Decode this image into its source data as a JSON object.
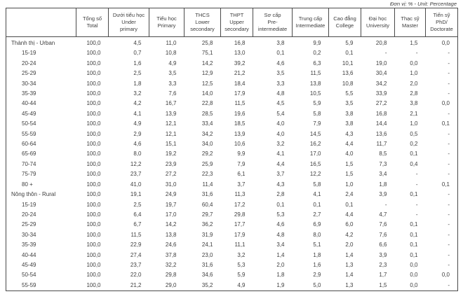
{
  "unit_note": "Đơn vị: % - Unit: Percentage",
  "table": {
    "columns": [
      {
        "id": "total",
        "label": "Tổng số\nTotal"
      },
      {
        "id": "under-primary",
        "label": "Dưới tiểu học\nUnder\nprimary"
      },
      {
        "id": "primary",
        "label": "Tiểu học\nPrimary"
      },
      {
        "id": "lower-secondary",
        "label": "THCS\nLower\nsecondary"
      },
      {
        "id": "upper-secondary",
        "label": "THPT\nUpper\nsecondary"
      },
      {
        "id": "pre-intermediate",
        "label": "Sơ cấp\nPre-\nintermediate"
      },
      {
        "id": "intermediate",
        "label": "Trung cấp\nIntermediate"
      },
      {
        "id": "college",
        "label": "Cao đẳng\nCollege"
      },
      {
        "id": "university",
        "label": "Đại học\nUniversity"
      },
      {
        "id": "master",
        "label": "Thạc sỹ\nMaster"
      },
      {
        "id": "doctorate",
        "label": "Tiến sỹ\nPhD/\nDoctorate"
      }
    ],
    "rows": [
      {
        "label": "Thành thị - Urban",
        "group": true,
        "values": [
          "100,0",
          "4,5",
          "11,0",
          "25,8",
          "16,8",
          "3,8",
          "9,9",
          "5,9",
          "20,8",
          "1,5",
          "0,0"
        ]
      },
      {
        "label": "15-19",
        "group": false,
        "values": [
          "100,0",
          "0,7",
          "10,8",
          "75,1",
          "13,0",
          "0,1",
          "0,2",
          "0,1",
          "-",
          "-",
          "-"
        ]
      },
      {
        "label": "20-24",
        "group": false,
        "values": [
          "100,0",
          "1,6",
          "4,9",
          "14,2",
          "39,2",
          "4,6",
          "6,3",
          "10,1",
          "19,0",
          "0,0",
          "-"
        ]
      },
      {
        "label": "25-29",
        "group": false,
        "values": [
          "100,0",
          "2,5",
          "3,5",
          "12,9",
          "21,2",
          "3,5",
          "11,5",
          "13,6",
          "30,4",
          "1,0",
          "-"
        ]
      },
      {
        "label": "30-34",
        "group": false,
        "values": [
          "100,0",
          "1,8",
          "3,3",
          "12,5",
          "18,4",
          "3,3",
          "13,8",
          "10,8",
          "34,2",
          "2,0",
          "-"
        ]
      },
      {
        "label": "35-39",
        "group": false,
        "values": [
          "100,0",
          "3,2",
          "7,6",
          "14,0",
          "17,9",
          "4,8",
          "10,5",
          "5,5",
          "33,9",
          "2,8",
          "-"
        ]
      },
      {
        "label": "40-44",
        "group": false,
        "values": [
          "100,0",
          "4,2",
          "16,7",
          "22,8",
          "11,5",
          "4,5",
          "5,9",
          "3,5",
          "27,2",
          "3,8",
          "0,0"
        ]
      },
      {
        "label": "45-49",
        "group": false,
        "values": [
          "100,0",
          "4,1",
          "13,9",
          "28,5",
          "19,6",
          "5,4",
          "5,8",
          "3,8",
          "16,8",
          "2,1",
          "-"
        ]
      },
      {
        "label": "50-54",
        "group": false,
        "values": [
          "100,0",
          "4,9",
          "12,1",
          "33,4",
          "18,5",
          "4,0",
          "7,9",
          "3,8",
          "14,4",
          "1,0",
          "0,1"
        ]
      },
      {
        "label": "55-59",
        "group": false,
        "values": [
          "100,0",
          "2,9",
          "12,1",
          "34,2",
          "13,9",
          "4,0",
          "14,5",
          "4,3",
          "13,6",
          "0,5",
          "-"
        ]
      },
      {
        "label": "60-64",
        "group": false,
        "values": [
          "100,0",
          "4,6",
          "15,1",
          "34,0",
          "10,6",
          "3,2",
          "16,2",
          "4,4",
          "11,7",
          "0,2",
          "-"
        ]
      },
      {
        "label": "65-69",
        "group": false,
        "values": [
          "100,0",
          "8,0",
          "19,2",
          "29,2",
          "9,9",
          "4,1",
          "17,0",
          "4,0",
          "8,5",
          "0,1",
          "-"
        ]
      },
      {
        "label": "70-74",
        "group": false,
        "values": [
          "100,0",
          "12,2",
          "23,9",
          "25,9",
          "7,9",
          "4,4",
          "16,5",
          "1,5",
          "7,3",
          "0,4",
          "-"
        ]
      },
      {
        "label": "75-79",
        "group": false,
        "values": [
          "100,0",
          "23,7",
          "27,2",
          "22,3",
          "6,1",
          "3,7",
          "12,2",
          "1,5",
          "3,4",
          "-",
          "-"
        ]
      },
      {
        "label": "80 +",
        "group": false,
        "values": [
          "100,0",
          "41,0",
          "31,0",
          "11,4",
          "3,7",
          "4,3",
          "5,8",
          "1,0",
          "1,8",
          "-",
          "0,1"
        ]
      },
      {
        "label": "Nông thôn - Rural",
        "group": true,
        "values": [
          "100,0",
          "19,1",
          "24,9",
          "31,6",
          "11,3",
          "2,8",
          "4,1",
          "2,4",
          "3,9",
          "0,1",
          "-"
        ]
      },
      {
        "label": "15-19",
        "group": false,
        "values": [
          "100,0",
          "2,5",
          "19,7",
          "60,4",
          "17,2",
          "0,1",
          "0,1",
          "0,1",
          "-",
          "-",
          "-"
        ]
      },
      {
        "label": "20-24",
        "group": false,
        "values": [
          "100,0",
          "6,4",
          "17,0",
          "29,7",
          "29,8",
          "5,3",
          "2,7",
          "4,4",
          "4,7",
          "-",
          "-"
        ]
      },
      {
        "label": "25-29",
        "group": false,
        "values": [
          "100,0",
          "6,7",
          "14,2",
          "36,2",
          "17,7",
          "4,6",
          "6,9",
          "6,0",
          "7,6",
          "0,1",
          "-"
        ]
      },
      {
        "label": "30-34",
        "group": false,
        "values": [
          "100,0",
          "11,5",
          "13,8",
          "31,9",
          "17,9",
          "4,8",
          "8,0",
          "4,2",
          "7,6",
          "0,1",
          "-"
        ]
      },
      {
        "label": "35-39",
        "group": false,
        "values": [
          "100,0",
          "22,9",
          "24,6",
          "24,1",
          "11,1",
          "3,4",
          "5,1",
          "2,0",
          "6,6",
          "0,1",
          "-"
        ]
      },
      {
        "label": "40-44",
        "group": false,
        "values": [
          "100,0",
          "27,4",
          "37,8",
          "23,0",
          "3,2",
          "1,4",
          "1,8",
          "1,4",
          "3,9",
          "0,1",
          "-"
        ]
      },
      {
        "label": "45-49",
        "group": false,
        "values": [
          "100,0",
          "23,7",
          "32,2",
          "31,6",
          "5,3",
          "2,0",
          "1,6",
          "1,3",
          "2,3",
          "0,0",
          "-"
        ]
      },
      {
        "label": "50-54",
        "group": false,
        "values": [
          "100,0",
          "22,0",
          "29,8",
          "34,6",
          "5,9",
          "1,8",
          "2,9",
          "1,4",
          "1,7",
          "0,0",
          "0,0"
        ]
      },
      {
        "label": "55-59",
        "group": false,
        "values": [
          "100,0",
          "21,2",
          "29,0",
          "35,2",
          "4,9",
          "1,9",
          "5,0",
          "1,3",
          "1,5",
          "0,0",
          "-"
        ]
      }
    ]
  }
}
